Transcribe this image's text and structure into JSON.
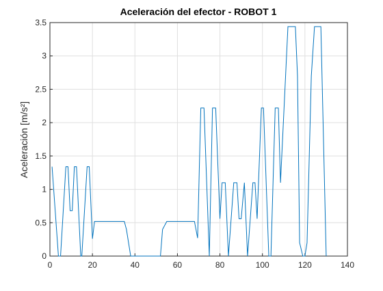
{
  "chart_data": {
    "type": "line",
    "title": "Aceleración del efector - ROBOT 1",
    "y_label": "Aceleración [m/s²]",
    "x": [
      1,
      4,
      5,
      7.5,
      8.5,
      9.5,
      10.5,
      11.5,
      12.5,
      14.5,
      15,
      17.5,
      18.5,
      20,
      21,
      35,
      36,
      38,
      52,
      53,
      55,
      68,
      69.5,
      71,
      72.5,
      75,
      76.5,
      78,
      80,
      81,
      82.5,
      84,
      86.5,
      88,
      89,
      90,
      91.5,
      93,
      95.5,
      96.5,
      97.5,
      99.5,
      100.5,
      103,
      104,
      106,
      107.5,
      108.5,
      112,
      115.5,
      116.5,
      117.5,
      119,
      120,
      121,
      123,
      124.5,
      127.5,
      130
    ],
    "series": [
      {
        "color": "#0072bd",
        "values": [
          1.34,
          0,
          0,
          1.34,
          1.34,
          0.68,
          0.68,
          1.34,
          1.34,
          0,
          0,
          1.34,
          1.34,
          0.26,
          0.52,
          0.52,
          0.4,
          0,
          0,
          0.4,
          0.52,
          0.52,
          0.27,
          2.22,
          2.22,
          0,
          2.22,
          2.22,
          0.56,
          1.1,
          1.1,
          0,
          1.1,
          1.1,
          0.56,
          0.56,
          1.1,
          0,
          1.1,
          1.1,
          0.56,
          2.22,
          2.22,
          0,
          0,
          2.22,
          2.22,
          1.1,
          3.44,
          3.44,
          2.7,
          0.2,
          0,
          0,
          0.2,
          2.7,
          3.44,
          3.44,
          0
        ]
      }
    ],
    "xlim": [
      0,
      140
    ],
    "ylim": [
      0,
      3.5
    ],
    "xticks": [
      0,
      20,
      40,
      60,
      80,
      100,
      120,
      140
    ],
    "yticks": [
      0,
      0.5,
      1,
      1.5,
      2,
      2.5,
      3,
      3.5
    ],
    "grid": true
  }
}
